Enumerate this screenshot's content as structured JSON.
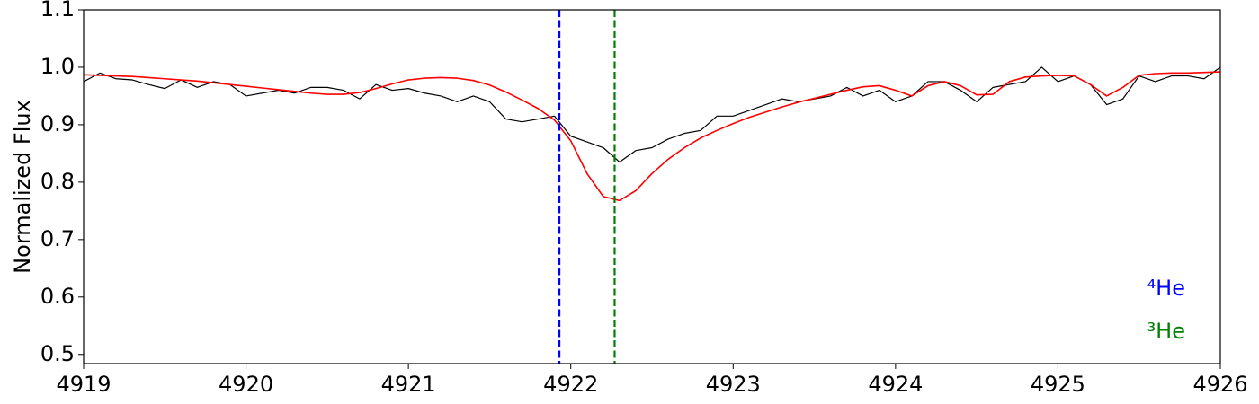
{
  "chart_data": {
    "type": "line",
    "y_label": "Normalized Flux",
    "x": [
      4919.0,
      4919.1,
      4919.2,
      4919.3,
      4919.4,
      4919.5,
      4919.6,
      4919.7,
      4919.8,
      4919.9,
      4920.0,
      4920.1,
      4920.2,
      4920.3,
      4920.4,
      4920.5,
      4920.6,
      4920.7,
      4920.8,
      4920.9,
      4921.0,
      4921.1,
      4921.2,
      4921.3,
      4921.4,
      4921.5,
      4921.6,
      4921.7,
      4921.8,
      4921.9,
      4922.0,
      4922.1,
      4922.2,
      4922.3,
      4922.4,
      4922.5,
      4922.6,
      4922.7,
      4922.8,
      4922.9,
      4923.0,
      4923.1,
      4923.2,
      4923.3,
      4923.4,
      4923.5,
      4923.6,
      4923.7,
      4923.8,
      4923.9,
      4924.0,
      4924.1,
      4924.2,
      4924.3,
      4924.4,
      4924.5,
      4924.6,
      4924.7,
      4924.8,
      4924.9,
      4925.0,
      4925.1,
      4925.2,
      4925.3,
      4925.4,
      4925.5,
      4925.6,
      4925.7,
      4925.8,
      4925.9,
      4926.0
    ],
    "series": [
      {
        "color": "#000000",
        "width": 1.2,
        "values": [
          0.975,
          0.99,
          0.98,
          0.978,
          0.97,
          0.963,
          0.978,
          0.965,
          0.975,
          0.97,
          0.95,
          0.955,
          0.96,
          0.955,
          0.965,
          0.965,
          0.96,
          0.945,
          0.97,
          0.96,
          0.963,
          0.955,
          0.95,
          0.94,
          0.95,
          0.94,
          0.91,
          0.905,
          0.91,
          0.915,
          0.88,
          0.87,
          0.86,
          0.835,
          0.855,
          0.86,
          0.875,
          0.885,
          0.89,
          0.915,
          0.915,
          0.925,
          0.935,
          0.945,
          0.94,
          0.945,
          0.95,
          0.965,
          0.95,
          0.96,
          0.94,
          0.95,
          0.975,
          0.975,
          0.96,
          0.94,
          0.965,
          0.97,
          0.975,
          1.0,
          0.975,
          0.985,
          0.97,
          0.935,
          0.945,
          0.985,
          0.975,
          0.985,
          0.985,
          0.98,
          1.0
        ]
      },
      {
        "color": "#ff0000",
        "width": 1.6,
        "values": [
          0.987,
          0.986,
          0.985,
          0.984,
          0.982,
          0.98,
          0.978,
          0.976,
          0.973,
          0.97,
          0.967,
          0.964,
          0.961,
          0.958,
          0.955,
          0.953,
          0.953,
          0.956,
          0.963,
          0.971,
          0.978,
          0.981,
          0.982,
          0.981,
          0.977,
          0.969,
          0.957,
          0.943,
          0.928,
          0.908,
          0.872,
          0.815,
          0.775,
          0.768,
          0.785,
          0.815,
          0.84,
          0.86,
          0.877,
          0.89,
          0.902,
          0.913,
          0.922,
          0.931,
          0.939,
          0.946,
          0.953,
          0.96,
          0.966,
          0.968,
          0.96,
          0.95,
          0.968,
          0.975,
          0.968,
          0.952,
          0.953,
          0.975,
          0.983,
          0.985,
          0.986,
          0.985,
          0.97,
          0.95,
          0.965,
          0.986,
          0.989,
          0.99,
          0.99,
          0.991,
          0.992
        ]
      }
    ],
    "vlines": [
      {
        "x": 4921.93,
        "color": "#0000ff",
        "label": "⁴He"
      },
      {
        "x": 4922.27,
        "color": "#008000",
        "label": "³He"
      }
    ],
    "xlim": [
      4919,
      4926
    ],
    "xticks": [
      4919,
      4920,
      4921,
      4922,
      4923,
      4924,
      4925,
      4926
    ],
    "ylim": [
      0.484,
      1.1
    ],
    "yticks": [
      0.5,
      0.6,
      0.7,
      0.8,
      0.9,
      {
        "value": 1.0,
        "label": "1.0"
      },
      1.1
    ]
  }
}
